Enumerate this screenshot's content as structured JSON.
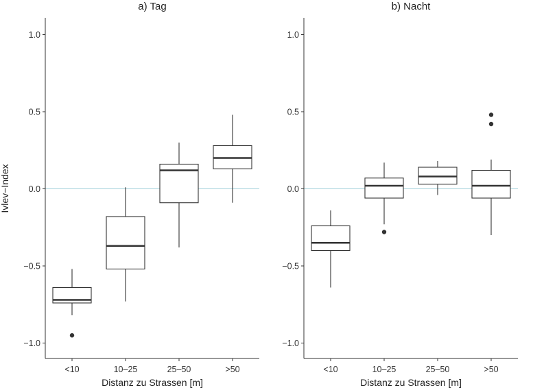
{
  "chart_data": {
    "type": "box",
    "ylabel": "Ivlev−Index",
    "ylim": [
      -1.1,
      1.1
    ],
    "yticks": [
      -1.0,
      -0.5,
      0.0,
      0.5,
      1.0
    ],
    "ytick_labels": [
      "−1.0",
      "−0.5",
      "0.0",
      "0.5",
      "1.0"
    ],
    "reference_line": {
      "y": 0.0,
      "color": "#9fd0d9"
    },
    "grid": false,
    "panels": [
      {
        "title": "a) Tag",
        "xlabel": "Distanz zu Strassen [m]",
        "categories": [
          "<10",
          "10–25",
          "25–50",
          ">50"
        ],
        "boxes": [
          {
            "whisker_low": -0.82,
            "q1": -0.74,
            "median": -0.72,
            "q3": -0.64,
            "whisker_high": -0.52,
            "outliers": [
              -0.95
            ]
          },
          {
            "whisker_low": -0.73,
            "q1": -0.52,
            "median": -0.37,
            "q3": -0.18,
            "whisker_high": 0.01,
            "outliers": []
          },
          {
            "whisker_low": -0.38,
            "q1": -0.09,
            "median": 0.12,
            "q3": 0.16,
            "whisker_high": 0.3,
            "outliers": []
          },
          {
            "whisker_low": -0.09,
            "q1": 0.13,
            "median": 0.2,
            "q3": 0.28,
            "whisker_high": 0.48,
            "outliers": []
          }
        ]
      },
      {
        "title": "b) Nacht",
        "xlabel": "Distanz zu Strassen [m]",
        "categories": [
          "<10",
          "10–25",
          "25–50",
          ">50"
        ],
        "boxes": [
          {
            "whisker_low": -0.64,
            "q1": -0.4,
            "median": -0.35,
            "q3": -0.24,
            "whisker_high": -0.14,
            "outliers": []
          },
          {
            "whisker_low": -0.23,
            "q1": -0.06,
            "median": 0.02,
            "q3": 0.07,
            "whisker_high": 0.17,
            "outliers": [
              -0.28
            ]
          },
          {
            "whisker_low": -0.04,
            "q1": 0.03,
            "median": 0.08,
            "q3": 0.14,
            "whisker_high": 0.18,
            "outliers": []
          },
          {
            "whisker_low": -0.3,
            "q1": -0.06,
            "median": 0.02,
            "q3": 0.12,
            "whisker_high": 0.19,
            "outliers": [
              0.42,
              0.48
            ]
          }
        ]
      }
    ]
  }
}
